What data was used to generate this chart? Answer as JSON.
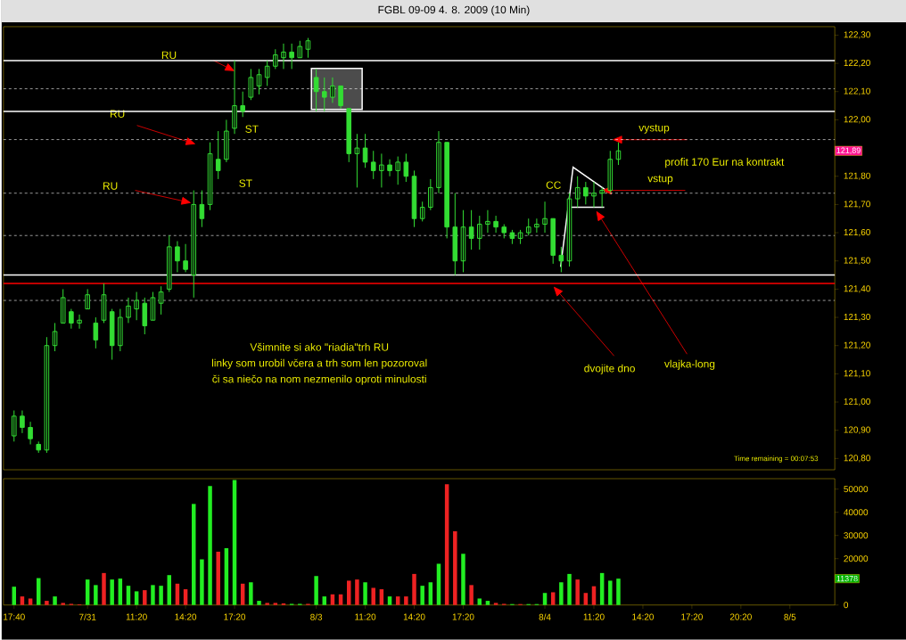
{
  "chart_data": [
    {
      "type": "candlestick",
      "title": "FGBL 09-09  4. 8. 2009 (10 Min)",
      "color": "#33dd33",
      "tick_labels": "y",
      "categories": [
        null,
        null,
        null,
        null,
        null,
        null,
        null,
        null,
        null,
        null,
        null,
        null,
        null,
        null,
        null,
        null,
        null,
        null,
        null,
        null,
        null,
        null,
        null,
        null,
        null,
        null,
        null,
        null,
        null,
        null,
        null,
        null,
        null,
        null,
        null,
        null,
        null,
        null,
        null,
        null,
        null,
        null,
        null,
        null,
        null,
        null,
        null,
        null,
        null,
        null,
        null,
        null,
        null,
        null,
        null,
        null,
        null,
        null,
        null,
        null,
        null,
        null,
        null,
        null,
        null,
        null,
        null,
        null,
        null,
        null,
        null,
        null,
        null,
        null,
        null,
        null,
        null,
        null,
        null,
        null,
        null,
        null,
        null,
        null,
        null,
        null,
        null,
        null,
        null,
        null,
        null,
        null,
        null,
        null,
        null,
        null,
        null,
        null,
        null,
        null,
        null
      ],
      "ohlc": [
        [
          120.88,
          120.97,
          120.86,
          120.95
        ],
        [
          120.95,
          120.97,
          120.89,
          120.91
        ],
        [
          120.91,
          120.93,
          120.85,
          120.87
        ],
        [
          120.85,
          120.86,
          120.82,
          120.83
        ],
        [
          120.83,
          121.23,
          120.82,
          121.2
        ],
        [
          121.2,
          121.28,
          121.18,
          121.25
        ],
        [
          121.28,
          121.4,
          121.28,
          121.37
        ],
        [
          121.32,
          121.33,
          121.26,
          121.28
        ],
        [
          121.28,
          121.31,
          121.26,
          121.29
        ],
        [
          121.33,
          121.4,
          121.33,
          121.38
        ],
        [
          121.28,
          121.3,
          121.19,
          121.22
        ],
        [
          121.29,
          121.42,
          121.28,
          121.38
        ],
        [
          121.32,
          121.33,
          121.15,
          121.2
        ],
        [
          121.2,
          121.33,
          121.18,
          121.3
        ],
        [
          121.3,
          121.37,
          121.28,
          121.34
        ],
        [
          121.33,
          121.39,
          121.29,
          121.36
        ],
        [
          121.35,
          121.37,
          121.24,
          121.27
        ],
        [
          121.29,
          121.39,
          121.29,
          121.37
        ],
        [
          121.35,
          121.41,
          121.31,
          121.39
        ],
        [
          121.4,
          121.59,
          121.39,
          121.55
        ],
        [
          121.55,
          121.57,
          121.46,
          121.5
        ],
        [
          121.5,
          121.56,
          121.46,
          121.47
        ],
        [
          121.45,
          121.75,
          121.37,
          121.7
        ],
        [
          121.7,
          121.75,
          121.62,
          121.65
        ],
        [
          121.7,
          121.92,
          121.68,
          121.88
        ],
        [
          121.86,
          121.96,
          121.79,
          121.82
        ],
        [
          121.86,
          122.0,
          121.85,
          121.96
        ],
        [
          121.97,
          122.21,
          121.95,
          122.05
        ],
        [
          122.05,
          122.1,
          122.01,
          122.03
        ],
        [
          122.08,
          122.18,
          122.07,
          122.15
        ],
        [
          122.12,
          122.18,
          122.09,
          122.16
        ],
        [
          122.15,
          122.21,
          122.12,
          122.19
        ],
        [
          122.19,
          122.25,
          122.18,
          122.23
        ],
        [
          122.22,
          122.27,
          122.18,
          122.24
        ],
        [
          122.24,
          122.27,
          122.18,
          122.22
        ],
        [
          122.22,
          122.28,
          122.22,
          122.26
        ],
        [
          122.25,
          122.29,
          122.22,
          122.28
        ],
        [
          122.15,
          122.18,
          122.03,
          122.1
        ],
        [
          122.1,
          122.15,
          122.03,
          122.08
        ],
        [
          122.08,
          122.15,
          122.06,
          122.12
        ],
        [
          122.12,
          122.12,
          122.04,
          122.05
        ],
        [
          122.04,
          122.04,
          121.85,
          121.88
        ],
        [
          121.88,
          121.95,
          121.76,
          121.9
        ],
        [
          121.9,
          121.95,
          121.83,
          121.85
        ],
        [
          121.85,
          121.89,
          121.79,
          121.82
        ],
        [
          121.82,
          121.88,
          121.76,
          121.84
        ],
        [
          121.84,
          121.86,
          121.8,
          121.82
        ],
        [
          121.82,
          121.87,
          121.77,
          121.85
        ],
        [
          121.85,
          121.88,
          121.78,
          121.8
        ],
        [
          121.8,
          121.82,
          121.62,
          121.65
        ],
        [
          121.65,
          121.71,
          121.64,
          121.69
        ],
        [
          121.69,
          121.79,
          121.68,
          121.76
        ],
        [
          121.76,
          121.96,
          121.74,
          121.92
        ],
        [
          121.92,
          121.92,
          121.58,
          121.62
        ],
        [
          121.62,
          121.74,
          121.45,
          121.5
        ],
        [
          121.5,
          121.68,
          121.46,
          121.62
        ],
        [
          121.62,
          121.68,
          121.54,
          121.58
        ],
        [
          121.58,
          121.66,
          121.54,
          121.63
        ],
        [
          121.63,
          121.68,
          121.6,
          121.64
        ],
        [
          121.64,
          121.66,
          121.6,
          121.62
        ],
        [
          121.62,
          121.63,
          121.58,
          121.6
        ],
        [
          121.6,
          121.61,
          121.56,
          121.58
        ],
        [
          121.58,
          121.61,
          121.56,
          121.6
        ],
        [
          121.6,
          121.65,
          121.59,
          121.62
        ],
        [
          121.62,
          121.65,
          121.6,
          121.63
        ],
        [
          121.63,
          121.71,
          121.6,
          121.65
        ],
        [
          121.65,
          121.65,
          121.49,
          121.52
        ],
        [
          121.52,
          121.55,
          121.46,
          121.5
        ],
        [
          121.5,
          121.74,
          121.48,
          121.72
        ],
        [
          121.72,
          121.8,
          121.69,
          121.76
        ],
        [
          121.76,
          121.78,
          121.7,
          121.73
        ],
        [
          121.73,
          121.78,
          121.69,
          121.74
        ],
        [
          121.74,
          121.76,
          121.69,
          121.75
        ],
        [
          121.75,
          121.89,
          121.74,
          121.86
        ],
        [
          121.86,
          121.92,
          121.84,
          121.89
        ],
        null,
        null,
        null,
        null,
        null,
        null,
        null,
        null,
        null,
        null,
        null,
        null,
        null,
        null,
        null,
        null,
        null,
        null,
        null,
        null,
        null,
        null,
        null,
        null,
        null,
        null
      ],
      "ylim": [
        120.76,
        122.33
      ],
      "yticks": [
        {
          "value": 120.8,
          "label": "120,80"
        },
        {
          "value": 120.9,
          "label": "120,90"
        },
        {
          "value": 121.0,
          "label": "121,00"
        },
        {
          "value": 121.1,
          "label": "121,10"
        },
        {
          "value": 121.2,
          "label": "121,20"
        },
        {
          "value": 121.3,
          "label": "121,30"
        },
        {
          "value": 121.4,
          "label": "121,40"
        },
        {
          "value": 121.5,
          "label": "121,50"
        },
        {
          "value": 121.6,
          "label": "121,60"
        },
        {
          "value": 121.7,
          "label": "121,70"
        },
        {
          "value": 121.8,
          "label": "121,80"
        },
        {
          "value": 122.0,
          "label": "122,00"
        },
        {
          "value": 122.1,
          "label": "122,10"
        },
        {
          "value": 122.2,
          "label": "122,20"
        },
        {
          "value": 122.3,
          "label": "122,30"
        }
      ],
      "ref_lines": [
        {
          "axis": "y",
          "value": 121.42,
          "color": "#ff0000",
          "line_style": "solid"
        },
        {
          "axis": "y",
          "value": 122.21,
          "color": "#ffffff",
          "line_style": "solid"
        },
        {
          "axis": "y",
          "value": 122.03,
          "color": "#ffffff",
          "line_style": "solid"
        },
        {
          "axis": "y",
          "value": 121.45,
          "color": "#ffffff",
          "line_style": "solid"
        },
        {
          "axis": "y",
          "value": 122.11,
          "color": "#ffffff",
          "line_style": "dashed"
        },
        {
          "axis": "y",
          "value": 121.93,
          "color": "#ffffff",
          "line_style": "dashed"
        },
        {
          "axis": "y",
          "value": 121.74,
          "color": "#ffffff",
          "line_style": "dashed"
        },
        {
          "axis": "y",
          "value": 121.59,
          "color": "#ffffff",
          "line_style": "dashed"
        },
        {
          "axis": "y",
          "value": 121.36,
          "color": "#ffffff",
          "line_style": "dashed"
        }
      ],
      "annotations": [
        "RU",
        "RU",
        "RU",
        "ST",
        "ST",
        "CC",
        {
          "text": "vystup",
          "y": 121.93
        },
        "profit 170 Eur na kontrakt",
        {
          "text": "vstup",
          "y": 121.75
        },
        "dvojite dno",
        "vlajka-long",
        "Všimnite si ako \"riadia\"trh RU",
        "linky som urobil včera a trh som len pozoroval",
        "či sa niečo na nom nezmenilo oproti minulosti",
        "Time remaining = 00:07:53",
        {
          "text": "121,89",
          "y": 121.89
        }
      ]
    },
    {
      "type": "bar",
      "categories": [
        "17:40",
        null,
        null,
        null,
        null,
        null,
        null,
        null,
        null,
        "7/31",
        null,
        null,
        null,
        null,
        null,
        "11:20",
        null,
        null,
        null,
        null,
        null,
        "14:20",
        null,
        null,
        null,
        null,
        null,
        "17:20",
        null,
        null,
        null,
        null,
        null,
        null,
        null,
        null,
        null,
        "8/3",
        null,
        null,
        null,
        null,
        null,
        "11:20",
        null,
        null,
        null,
        null,
        null,
        "14:20",
        null,
        null,
        null,
        null,
        null,
        "17:20",
        null,
        null,
        null,
        null,
        null,
        null,
        null,
        null,
        null,
        "8/4",
        null,
        null,
        null,
        null,
        null,
        "11:20",
        null,
        null,
        null,
        null,
        null,
        "14:20",
        null,
        null,
        null,
        null,
        null,
        "17:20",
        null,
        null,
        null,
        null,
        null,
        "20:20",
        null,
        null,
        null,
        null,
        null,
        "8/5",
        null,
        null,
        null,
        null,
        null
      ],
      "values": [
        7900,
        3700,
        2800,
        11600,
        1800,
        3700,
        900,
        500,
        300,
        11000,
        8600,
        13800,
        11000,
        11400,
        8300,
        5900,
        6400,
        8600,
        8300,
        12900,
        9200,
        6800,
        43600,
        19700,
        51300,
        23000,
        24500,
        53900,
        9200,
        9800,
        1800,
        900,
        900,
        700,
        500,
        500,
        500,
        12500,
        3700,
        4600,
        4600,
        10500,
        11000,
        9800,
        7400,
        6800,
        3700,
        3700,
        3700,
        13400,
        8300,
        9800,
        17800,
        52100,
        31800,
        22100,
        8600,
        2800,
        1800,
        900,
        500,
        400,
        400,
        400,
        400,
        5200,
        5500,
        9800,
        13400,
        11000,
        5200,
        8100,
        13800,
        10500,
        11378,
        null,
        null,
        null,
        null,
        null,
        null,
        null,
        null,
        null,
        null,
        null,
        null,
        null,
        null,
        null,
        null,
        null,
        null,
        null,
        null,
        null,
        null,
        null,
        null,
        null,
        null
      ],
      "colors": [
        "#22ee22",
        "#ee2222",
        "#ee2222",
        "#22ee22",
        "#ee2222",
        "#22ee22",
        "#ee2222",
        "#ee2222",
        "#ee2222",
        "#22ee22",
        "#22ee22",
        "#ee2222",
        "#22ee22",
        "#22ee22",
        "#22ee22",
        "#22ee22",
        "#ee2222",
        "#22ee22",
        "#22ee22",
        "#22ee22",
        "#ee2222",
        "#ee2222",
        "#22ee22",
        "#22ee22",
        "#22ee22",
        "#ee2222",
        "#22ee22",
        "#22ee22",
        "#ee2222",
        "#22ee22",
        "#22ee22",
        "#ee2222",
        "#ee2222",
        "#ee2222",
        "#22ee22",
        "#22ee22",
        "#ee2222",
        "#22ee22",
        "#22ee22",
        "#ee2222",
        "#ee2222",
        "#ee2222",
        "#ee2222",
        "#22ee22",
        "#ee2222",
        "#ee2222",
        "#22ee22",
        "#ee2222",
        "#ee2222",
        "#ee2222",
        "#22ee22",
        "#22ee22",
        "#22ee22",
        "#ee2222",
        "#ee2222",
        "#22ee22",
        "#ee2222",
        "#22ee22",
        "#22ee22",
        "#ee2222",
        "#ee2222",
        "#22ee22",
        "#ee2222",
        "#22ee22",
        "#22ee22",
        "#22ee22",
        "#ee2222",
        "#22ee22",
        "#22ee22",
        "#ee2222",
        "#ee2222",
        "#ee2222",
        "#22ee22",
        "#22ee22",
        "#22ee22",
        null,
        null,
        null,
        null,
        null,
        null,
        null,
        null,
        null,
        null,
        null,
        null,
        null,
        null,
        null,
        null,
        null,
        null,
        null,
        null,
        null,
        null,
        null,
        null,
        null,
        null
      ],
      "ylim": [
        0,
        54500
      ],
      "yticks": [
        0,
        20000,
        30000,
        40000,
        50000
      ],
      "annotations": [
        {
          "text": "11378",
          "y": 11378
        }
      ]
    }
  ]
}
